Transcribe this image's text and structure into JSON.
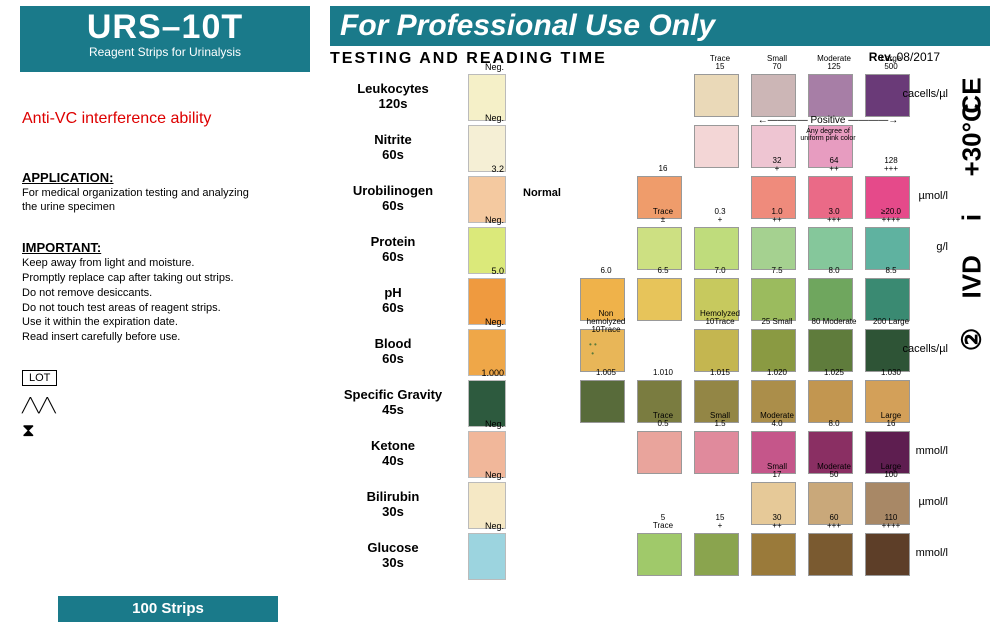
{
  "brand": {
    "name": "URS–10T",
    "sub": "Reagent Strips for Urinalysis"
  },
  "banner": "For Professional Use Only",
  "heading": "TESTING  AND  READING  TIME",
  "rev": {
    "label": "Rev.",
    "value": "08/2017"
  },
  "anti": "Anti-VC interference ability",
  "application": {
    "hdr": "APPLICATION:",
    "txt": "For medical organization testing and analyzing\nthe urine specimen"
  },
  "important": {
    "hdr": "IMPORTANT:",
    "txt": "Keep away from light and moisture.\nPromptly replace cap after taking out strips.\nDo not remove desiccants.\nDo not touch test areas of reagent strips.\nUse it within the expiration date.\nRead insert carefully before use."
  },
  "lot": "LOT",
  "strips": "100 Strips",
  "normal_label": "Normal",
  "positive_label": "Positive",
  "positive_note": "Any degree of\nuniform pink color",
  "side": [
    "CE",
    "+30°C",
    "i",
    "IVD",
    "②"
  ],
  "rows": [
    {
      "name": "Leukocytes",
      "time": "120s",
      "strip_label": "Neg.",
      "strip_color": "#f5f0c8",
      "unit": "cacells/µl",
      "swatches": [
        {
          "c": "#ead9b8",
          "t": "Trace",
          "b": "15"
        },
        {
          "c": "#ccb6b6",
          "t": "Small",
          "b": "70"
        },
        {
          "c": "#a77ea6",
          "t": "Moderate",
          "b": "125"
        },
        {
          "c": "#6a3a78",
          "t": "Large",
          "b": "500"
        }
      ],
      "offset": 3
    },
    {
      "name": "Nitrite",
      "time": "60s",
      "strip_label": "Neg.",
      "strip_color": "#f5efd5",
      "unit": "",
      "swatches": [
        {
          "c": "#f3d6d6"
        },
        {
          "c": "#eec5d2"
        },
        {
          "c": "#e79cc0"
        }
      ],
      "offset": 3
    },
    {
      "name": "Urobilinogen",
      "time": "60s",
      "strip_label": "3.2",
      "strip_color": "#f4c9a0",
      "unit": "µmol/l",
      "swatches": [
        {
          "c": "#ef9c6b",
          "t": "16"
        },
        {
          "c": null
        },
        {
          "c": "#ef8b7c",
          "t": "32",
          "b": "+"
        },
        {
          "c": "#ea6a87",
          "t": "64",
          "b": "++"
        },
        {
          "c": "#e54a8a",
          "t": "128",
          "b": "+++"
        }
      ],
      "offset": 2
    },
    {
      "name": "Protein",
      "time": "60s",
      "strip_label": "Neg.",
      "strip_color": "#dbe97a",
      "unit": "g/l",
      "swatches": [
        {
          "c": "#cde082",
          "t": "Trace",
          "b": "±"
        },
        {
          "c": "#bfdc7c",
          "t": "0.3",
          "b": "+"
        },
        {
          "c": "#a5d190",
          "t": "1.0",
          "b": "++"
        },
        {
          "c": "#85c79b",
          "t": "3.0",
          "b": "+++"
        },
        {
          "c": "#5fb2a0",
          "t": "≥20.0",
          "b": "++++"
        }
      ],
      "offset": 2
    },
    {
      "name": "pH",
      "time": "60s",
      "strip_label": "5.0",
      "strip_color": "#ef9a3f",
      "unit": "",
      "swatches": [
        {
          "c": "#efb24a",
          "t": "6.0"
        },
        {
          "c": "#e7c45a",
          "t": "6.5"
        },
        {
          "c": "#c7c95e",
          "t": "7.0"
        },
        {
          "c": "#9bbb5e",
          "t": "7.5"
        },
        {
          "c": "#6fa65e",
          "t": "8.0"
        },
        {
          "c": "#3a8a72",
          "t": "8.5"
        }
      ],
      "offset": 1
    },
    {
      "name": "Blood",
      "time": "60s",
      "strip_label": "Neg.",
      "strip_color": "#efa748",
      "unit": "cacells/µl",
      "swatches": [
        {
          "c": "#e8b658",
          "t": "Non hemolyzed",
          "b": "10Trace",
          "spots": true
        },
        {
          "c": null
        },
        {
          "c": "#c4b650",
          "t": "Hemolyzed",
          "b": "10Trace"
        },
        {
          "c": "#8a9a42",
          "t": "25 Small"
        },
        {
          "c": "#5f7c3c",
          "t": "80 Moderate"
        },
        {
          "c": "#2e5436",
          "t": "200 Large"
        }
      ],
      "offset": 1
    },
    {
      "name": "Specific Gravity",
      "time": "45s",
      "strip_label": "1.000",
      "strip_color": "#2d5a3e",
      "unit": "",
      "swatches": [
        {
          "c": "#586b3a",
          "t": "1.005"
        },
        {
          "c": "#7a7c40",
          "t": "1.010"
        },
        {
          "c": "#938645",
          "t": "1.015"
        },
        {
          "c": "#ab8e4a",
          "t": "1.020"
        },
        {
          "c": "#c29650",
          "t": "1.025"
        },
        {
          "c": "#d3a059",
          "t": "1.030"
        }
      ],
      "offset": 1
    },
    {
      "name": "Ketone",
      "time": "40s",
      "strip_label": "Neg.",
      "strip_color": "#f1b79a",
      "unit": "mmol/l",
      "swatches": [
        {
          "c": null
        },
        {
          "c": "#e9a49c",
          "t": "Trace",
          "b": "0.5"
        },
        {
          "c": "#e08a9c",
          "t": "Small",
          "b": "1.5"
        },
        {
          "c": "#c5568a",
          "t": "Moderate",
          "b": "4.0"
        },
        {
          "c": "#8a2f63",
          "t": "",
          "b": "8.0"
        },
        {
          "c": "#5e1e50",
          "t": "Large",
          "b": "16"
        }
      ],
      "offset": 1
    },
    {
      "name": "Bilirubin",
      "time": "30s",
      "strip_label": "Neg.",
      "strip_color": "#f5e8c5",
      "unit": "µmol/l",
      "swatches": [
        {
          "c": "#e6c998",
          "t": "Small",
          "b": "17"
        },
        {
          "c": "#c9a87a",
          "t": "Moderate",
          "b": "50"
        },
        {
          "c": "#a88866",
          "t": "Large",
          "b": "100"
        }
      ],
      "offset": 4
    },
    {
      "name": "Glucose",
      "time": "30s",
      "strip_label": "Neg.",
      "strip_color": "#9cd4df",
      "unit": "mmol/l",
      "swatches": [
        {
          "c": "#a0c96a",
          "t": "5",
          "b": "Trace"
        },
        {
          "c": "#8aa44e",
          "t": "15",
          "b": "+"
        },
        {
          "c": "#9a7a3a",
          "t": "30",
          "b": "++"
        },
        {
          "c": "#7a5a30",
          "t": "60",
          "b": "+++"
        },
        {
          "c": "#5d3e28",
          "t": "110",
          "b": "++++"
        }
      ],
      "offset": 2
    }
  ],
  "colors": {
    "brand": "#1a7a8a",
    "red": "#d00"
  }
}
